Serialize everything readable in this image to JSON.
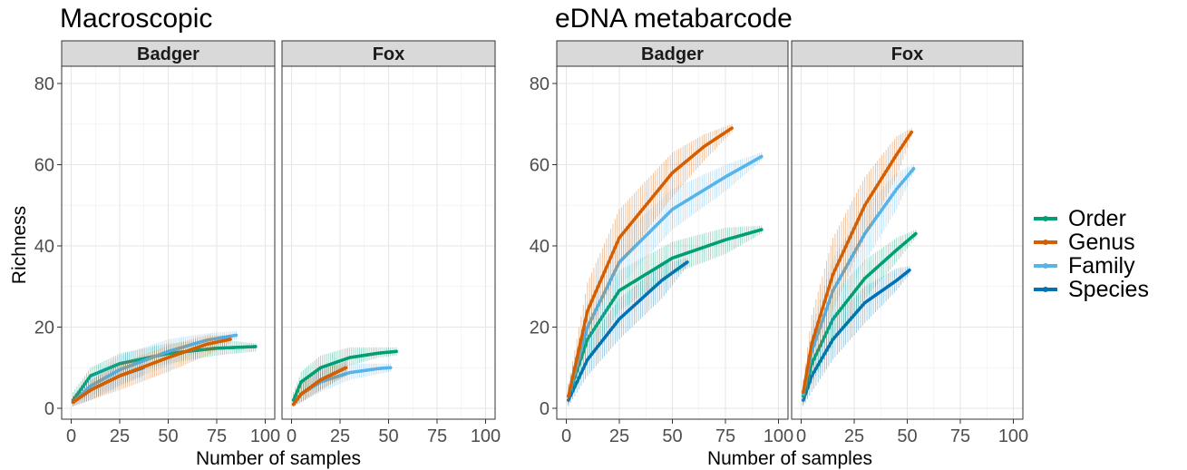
{
  "chart_data": [
    {
      "type": "line",
      "title": "Macroscopic",
      "xlabel": "Number of samples",
      "ylabel": "Richness",
      "xlim": [
        0,
        100
      ],
      "ylim": [
        0,
        80
      ],
      "xticks": [
        "0",
        "25",
        "50",
        "75",
        "100"
      ],
      "yticks": [
        "0",
        "20",
        "40",
        "60",
        "80"
      ],
      "grid": true,
      "legend": "right",
      "panels": [
        {
          "label": "Badger",
          "series": [
            {
              "name": "Order",
              "x": [
                1,
                10,
                25,
                50,
                75,
                95
              ],
              "y": [
                2,
                8,
                11,
                13.5,
                14.8,
                15.2
              ],
              "lower": [
                1,
                5,
                8,
                11,
                13,
                14
              ],
              "upper": [
                4,
                10,
                13.5,
                16,
                17,
                16
              ]
            },
            {
              "name": "Genus",
              "x": [
                1,
                10,
                25,
                50,
                70,
                82
              ],
              "y": [
                1.5,
                4.5,
                8,
                12.5,
                15.8,
                17
              ],
              "lower": [
                0.5,
                2,
                4.5,
                9,
                13,
                16
              ],
              "upper": [
                3,
                7,
                11,
                15.5,
                18,
                18
              ]
            },
            {
              "name": "Family",
              "x": [
                1,
                10,
                25,
                50,
                70,
                85
              ],
              "y": [
                1.5,
                5.5,
                9.5,
                14,
                16.8,
                18
              ],
              "lower": [
                0.5,
                3,
                6,
                10.5,
                14.5,
                17
              ],
              "upper": [
                3,
                8,
                13,
                17,
                18.5,
                19
              ]
            },
            {
              "name": "Species",
              "x": [
                1,
                10,
                25,
                37
              ],
              "y": [
                1.5,
                4.5,
                8,
                10
              ],
              "lower": [
                0.5,
                2,
                5.5,
                8
              ],
              "upper": [
                3,
                7,
                10.5,
                12
              ]
            }
          ]
        },
        {
          "label": "Fox",
          "series": [
            {
              "name": "Order",
              "x": [
                1,
                5,
                15,
                30,
                45,
                54
              ],
              "y": [
                2,
                6.5,
                10,
                12.5,
                13.6,
                14
              ],
              "lower": [
                1,
                3.5,
                7,
                10.5,
                12.5,
                13
              ],
              "upper": [
                4,
                9,
                13,
                15,
                15,
                15
              ]
            },
            {
              "name": "Genus",
              "x": [
                1,
                5,
                15,
                28
              ],
              "y": [
                1,
                3.5,
                7,
                10
              ],
              "lower": [
                0.5,
                1.5,
                4.5,
                8
              ],
              "upper": [
                2.5,
                6,
                9.5,
                11.5
              ]
            },
            {
              "name": "Family",
              "x": [
                1,
                5,
                15,
                30,
                45,
                51
              ],
              "y": [
                1,
                3.5,
                6.5,
                8.8,
                9.8,
                10
              ],
              "lower": [
                0.5,
                1.5,
                4,
                7,
                8.5,
                9
              ],
              "upper": [
                2.5,
                6,
                9,
                11,
                11,
                11
              ]
            },
            {
              "name": "Species",
              "x": [
                1,
                5,
                15,
                28
              ],
              "y": [
                1,
                3.5,
                7,
                10
              ],
              "lower": [
                0.5,
                1.5,
                4.5,
                8
              ],
              "upper": [
                2.5,
                6,
                9.5,
                11.5
              ]
            }
          ]
        }
      ]
    },
    {
      "type": "line",
      "title": "eDNA metabarcode",
      "xlabel": "Number of samples",
      "ylabel": "",
      "xlim": [
        0,
        100
      ],
      "ylim": [
        0,
        80
      ],
      "xticks": [
        "0",
        "25",
        "50",
        "75",
        "100"
      ],
      "yticks": [
        "0",
        "20",
        "40",
        "60",
        "80"
      ],
      "grid": true,
      "legend": "right",
      "panels": [
        {
          "label": "Badger",
          "series": [
            {
              "name": "Order",
              "x": [
                1,
                10,
                25,
                50,
                75,
                92
              ],
              "y": [
                3,
                17,
                29,
                37,
                41.5,
                44
              ],
              "lower": [
                1,
                12,
                24,
                33,
                38,
                43
              ],
              "upper": [
                5,
                22,
                34,
                41,
                44.5,
                45
              ]
            },
            {
              "name": "Genus",
              "x": [
                1,
                10,
                25,
                50,
                65,
                78
              ],
              "y": [
                3,
                24,
                42,
                58,
                64.5,
                69
              ],
              "lower": [
                1,
                17,
                35,
                52,
                61,
                68
              ],
              "upper": [
                6,
                31,
                49,
                63,
                67.5,
                70
              ]
            },
            {
              "name": "Family",
              "x": [
                1,
                10,
                25,
                50,
                75,
                92
              ],
              "y": [
                3,
                20,
                36,
                49,
                57,
                62
              ],
              "lower": [
                1,
                14,
                30,
                44,
                53.5,
                61
              ],
              "upper": [
                6,
                26,
                42,
                54,
                60,
                63
              ]
            },
            {
              "name": "Species",
              "x": [
                1,
                10,
                25,
                45,
                57
              ],
              "y": [
                2,
                12,
                22,
                31.5,
                36
              ],
              "lower": [
                0.5,
                8,
                17,
                27,
                35
              ],
              "upper": [
                4,
                16,
                27,
                35.5,
                37
              ]
            }
          ]
        },
        {
          "label": "Fox",
          "series": [
            {
              "name": "Order",
              "x": [
                1,
                5,
                15,
                30,
                45,
                54
              ],
              "y": [
                3,
                11,
                22,
                32,
                39,
                43
              ],
              "lower": [
                1,
                6,
                16,
                27,
                36,
                42
              ],
              "upper": [
                5,
                16,
                28,
                36.5,
                42,
                44
              ]
            },
            {
              "name": "Genus",
              "x": [
                1,
                5,
                15,
                30,
                45,
                52
              ],
              "y": [
                4,
                16,
                33,
                50,
                62.5,
                68
              ],
              "lower": [
                1,
                9,
                24,
                42,
                57,
                67
              ],
              "upper": [
                7,
                23,
                42,
                57,
                67,
                69
              ]
            },
            {
              "name": "Family",
              "x": [
                1,
                5,
                15,
                30,
                45,
                53
              ],
              "y": [
                3.5,
                14,
                29,
                43,
                54,
                59
              ],
              "lower": [
                1,
                8,
                21,
                36,
                49,
                58
              ],
              "upper": [
                6,
                20,
                37,
                49.5,
                58,
                60
              ]
            },
            {
              "name": "Species",
              "x": [
                1,
                5,
                15,
                30,
                45,
                51
              ],
              "y": [
                2,
                8,
                17,
                26,
                31.5,
                34
              ],
              "lower": [
                0.5,
                4,
                12,
                21,
                29,
                33
              ],
              "upper": [
                4,
                12,
                22,
                30,
                34.5,
                35
              ]
            }
          ]
        }
      ]
    }
  ],
  "legend": {
    "items": [
      {
        "label": "Order",
        "color": "#009E73"
      },
      {
        "label": "Genus",
        "color": "#D55E00"
      },
      {
        "label": "Family",
        "color": "#56B4E9"
      },
      {
        "label": "Species",
        "color": "#0072B2"
      }
    ]
  }
}
